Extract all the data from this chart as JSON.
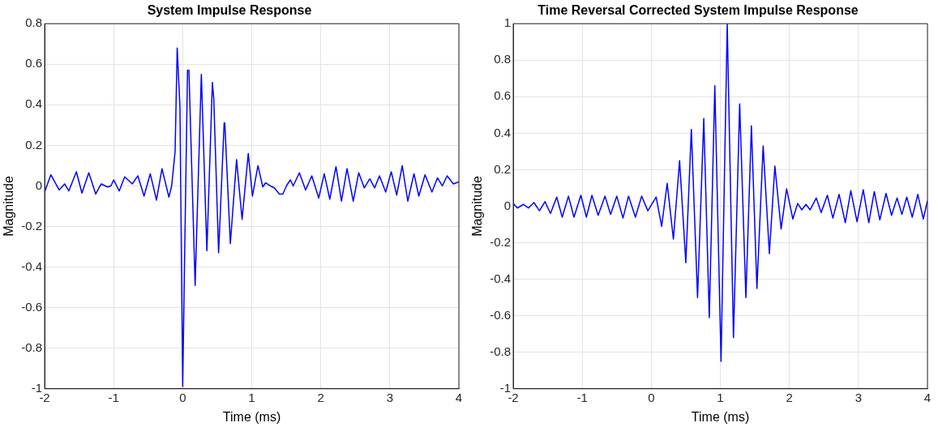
{
  "chart_data": [
    {
      "type": "line",
      "title": "System Impulse Response",
      "xlabel": "Time (ms)",
      "ylabel": "Magnitude",
      "xlim": [
        -2,
        4
      ],
      "xticks": [
        -2,
        -1,
        0,
        1,
        2,
        3,
        4
      ],
      "ylim": [
        -1,
        0.8
      ],
      "yticks": [
        -1,
        -0.8,
        -0.6,
        -0.4,
        -0.2,
        0,
        0.2,
        0.4,
        0.6,
        0.8
      ],
      "grid": true,
      "line_style": "solid",
      "series": [
        {
          "color": "#0000ff",
          "x": [
            -2,
            -1.91,
            -1.79,
            -1.71,
            -1.65,
            -1.54,
            -1.46,
            -1.36,
            -1.26,
            -1.18,
            -1.09,
            -1.04,
            -1.0,
            -0.92,
            -0.84,
            -0.73,
            -0.65,
            -0.56,
            -0.47,
            -0.38,
            -0.3,
            -0.2,
            -0.16,
            -0.11,
            -0.08,
            -0.04,
            0.0,
            0.03,
            0.07,
            0.09,
            0.18,
            0.27,
            0.35,
            0.43,
            0.45,
            0.52,
            0.6,
            0.61,
            0.69,
            0.78,
            0.86,
            0.95,
            1.01,
            1.09,
            1.16,
            1.2,
            1.27,
            1.33,
            1.4,
            1.45,
            1.51,
            1.56,
            1.6,
            1.69,
            1.78,
            1.87,
            1.97,
            2.05,
            2.13,
            2.22,
            2.3,
            2.38,
            2.47,
            2.55,
            2.63,
            2.71,
            2.78,
            2.85,
            2.94,
            3.02,
            3.1,
            3.18,
            3.26,
            3.35,
            3.42,
            3.51,
            3.61,
            3.69,
            3.76,
            3.83,
            3.92,
            4
          ],
          "values": [
            -0.03,
            0.055,
            -0.02,
            0.01,
            -0.025,
            0.07,
            -0.035,
            0.065,
            -0.04,
            0.01,
            -0.005,
            0,
            0.03,
            -0.025,
            0.045,
            0.01,
            0.05,
            -0.05,
            0.06,
            -0.07,
            0.085,
            -0.055,
            0,
            0.17,
            0.68,
            0.39,
            -0.99,
            -0.3,
            0.57,
            0.57,
            -0.49,
            0.55,
            -0.32,
            0.51,
            0.43,
            -0.33,
            0.31,
            0.31,
            -0.285,
            0.13,
            -0.165,
            0.16,
            -0.05,
            0.1,
            -0.005,
            0.015,
            0,
            -0.01,
            -0.04,
            -0.04,
            0.005,
            0.03,
            0,
            0.065,
            -0.02,
            0.05,
            -0.06,
            0.06,
            -0.065,
            0.095,
            -0.075,
            0.085,
            -0.075,
            0.065,
            -0.01,
            0.035,
            -0.01,
            0.05,
            -0.03,
            0.07,
            -0.045,
            0.1,
            -0.075,
            0.06,
            -0.05,
            0.055,
            -0.03,
            0.04,
            0,
            0.05,
            0.01,
            0.02
          ]
        }
      ]
    },
    {
      "type": "line",
      "title": "Time Reversal Corrected System Impulse Response",
      "xlabel": "Time (ms)",
      "ylabel": "Magnitude",
      "xlim": [
        -2,
        4
      ],
      "xticks": [
        -2,
        -1,
        0,
        1,
        2,
        3,
        4
      ],
      "ylim": [
        -1,
        1
      ],
      "yticks": [
        -1,
        -0.8,
        -0.6,
        -0.4,
        -0.2,
        0,
        0.2,
        0.4,
        0.6,
        0.8,
        1
      ],
      "grid": true,
      "line_style": "solid",
      "series": [
        {
          "color": "#0000ff",
          "x": [
            -2,
            -1.94,
            -1.85,
            -1.78,
            -1.7,
            -1.62,
            -1.54,
            -1.46,
            -1.37,
            -1.29,
            -1.2,
            -1.12,
            -1.02,
            -0.94,
            -0.86,
            -0.77,
            -0.67,
            -0.59,
            -0.5,
            -0.41,
            -0.33,
            -0.23,
            -0.14,
            -0.05,
            0.07,
            0.15,
            0.23,
            0.32,
            0.41,
            0.5,
            0.58,
            0.67,
            0.76,
            0.84,
            0.92,
            1.01,
            1.1,
            1.19,
            1.28,
            1.37,
            1.45,
            1.53,
            1.62,
            1.71,
            1.79,
            1.88,
            1.96,
            2.05,
            2.12,
            2.18,
            2.24,
            2.3,
            2.39,
            2.46,
            2.55,
            2.63,
            2.72,
            2.81,
            2.89,
            2.98,
            3.07,
            3.15,
            3.23,
            3.31,
            3.4,
            3.48,
            3.56,
            3.63,
            3.7,
            3.78,
            3.86,
            3.94,
            4
          ],
          "values": [
            0.015,
            -0.01,
            0.01,
            -0.01,
            0.02,
            -0.025,
            0.025,
            -0.04,
            0.05,
            -0.06,
            0.055,
            -0.06,
            0.06,
            -0.06,
            0.06,
            -0.05,
            0.055,
            -0.045,
            0.055,
            -0.065,
            0.055,
            -0.06,
            0.055,
            -0.025,
            0.05,
            -0.11,
            0.125,
            -0.18,
            0.25,
            -0.31,
            0.42,
            -0.5,
            0.48,
            -0.61,
            0.66,
            -0.85,
            1.0,
            -0.72,
            0.56,
            -0.5,
            0.44,
            -0.45,
            0.33,
            -0.26,
            0.22,
            -0.125,
            0.095,
            -0.07,
            0.015,
            -0.02,
            0.01,
            -0.02,
            0.045,
            -0.035,
            0.06,
            -0.065,
            0.065,
            -0.09,
            0.085,
            -0.085,
            0.09,
            -0.09,
            0.08,
            -0.075,
            0.07,
            -0.05,
            0.045,
            -0.045,
            0.05,
            -0.06,
            0.065,
            -0.07,
            0.03
          ]
        }
      ]
    }
  ]
}
